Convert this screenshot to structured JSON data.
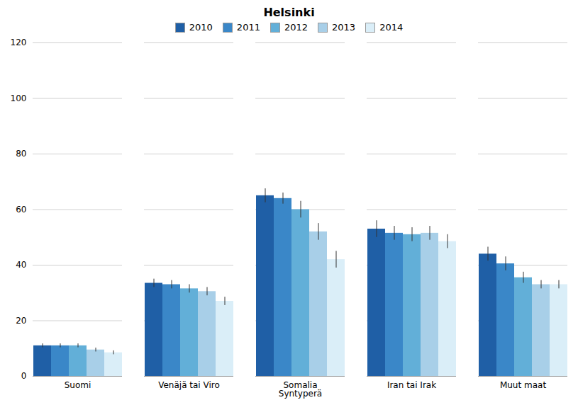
{
  "chart_data": {
    "type": "bar",
    "title": "Helsinki",
    "categories": [
      "Suomi",
      "Venäjä tai Viro",
      "Somalia\nSyntyperä",
      "Iran tai Irak",
      "Muut maat"
    ],
    "series": [
      {
        "name": "2010",
        "color": "#1f5fa6",
        "values": [
          11.0,
          33.5,
          65.0,
          53.0,
          44.0
        ],
        "errors": [
          0.7,
          1.5,
          2.5,
          3.0,
          2.5
        ]
      },
      {
        "name": "2011",
        "color": "#3a87c8",
        "values": [
          11.0,
          33.0,
          64.0,
          51.5,
          40.5
        ],
        "errors": [
          0.7,
          1.5,
          2.0,
          2.5,
          2.5
        ]
      },
      {
        "name": "2012",
        "color": "#62afd8",
        "values": [
          11.0,
          31.5,
          60.0,
          51.0,
          35.5
        ],
        "errors": [
          0.7,
          1.5,
          3.0,
          2.5,
          2.0
        ]
      },
      {
        "name": "2013",
        "color": "#a8cfe8",
        "values": [
          9.5,
          30.5,
          52.0,
          51.5,
          33.0
        ],
        "errors": [
          0.7,
          1.5,
          3.0,
          2.5,
          1.5
        ]
      },
      {
        "name": "2014",
        "color": "#daeef8",
        "values": [
          8.5,
          27.0,
          42.0,
          48.5,
          33.0
        ],
        "errors": [
          0.7,
          1.5,
          3.0,
          2.5,
          1.5
        ]
      }
    ],
    "ylim": [
      0,
      120
    ],
    "yticks": [
      0,
      20,
      40,
      60,
      80,
      100,
      120
    ],
    "grid": true,
    "legend": "upper center"
  }
}
